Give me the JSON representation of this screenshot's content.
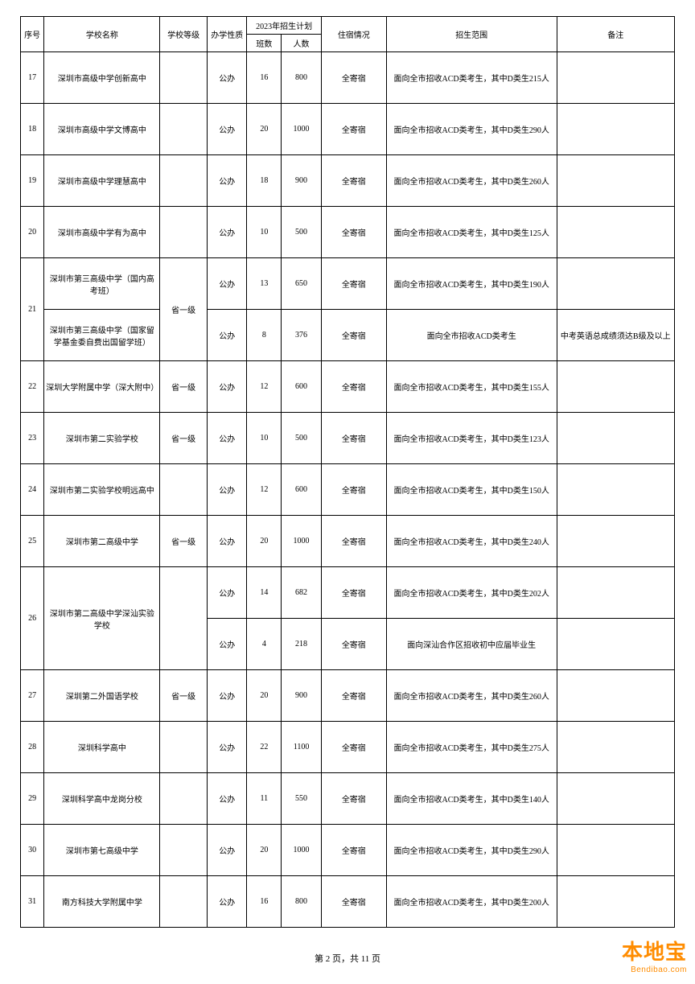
{
  "headers": {
    "seq": "序号",
    "name": "学校名称",
    "level": "学校等级",
    "type": "办学性质",
    "plan": "2023年招生计划",
    "classes": "班数",
    "students": "人数",
    "boarding": "住宿情况",
    "scope": "招生范围",
    "note": "备注"
  },
  "rows": [
    {
      "seq": "17",
      "name": "深圳市高级中学创新高中",
      "level": "",
      "type": "公办",
      "classes": "16",
      "students": "800",
      "boarding": "全寄宿",
      "scope": "面向全市招收ACD类考生，其中D类生215人",
      "note": ""
    },
    {
      "seq": "18",
      "name": "深圳市高级中学文博高中",
      "level": "",
      "type": "公办",
      "classes": "20",
      "students": "1000",
      "boarding": "全寄宿",
      "scope": "面向全市招收ACD类考生，其中D类生290人",
      "note": ""
    },
    {
      "seq": "19",
      "name": "深圳市高级中学理慧高中",
      "level": "",
      "type": "公办",
      "classes": "18",
      "students": "900",
      "boarding": "全寄宿",
      "scope": "面向全市招收ACD类考生，其中D类生260人",
      "note": ""
    },
    {
      "seq": "20",
      "name": "深圳市高级中学有为高中",
      "level": "",
      "type": "公办",
      "classes": "10",
      "students": "500",
      "boarding": "全寄宿",
      "scope": "面向全市招收ACD类考生，其中D类生125人",
      "note": ""
    },
    {
      "seq": "21",
      "name": "深圳市第三高级中学（国内高考班）",
      "level": "省一级",
      "type": "公办",
      "classes": "13",
      "students": "650",
      "boarding": "全寄宿",
      "scope": "面向全市招收ACD类考生，其中D类生190人",
      "note": "",
      "seqRowspan": 2,
      "levelRowspan": 2
    },
    {
      "name": "深圳市第三高级中学（国家留学基金委自费出国留学班）",
      "type": "公办",
      "classes": "8",
      "students": "376",
      "boarding": "全寄宿",
      "scope": "面向全市招收ACD类考生",
      "note": "中考英语总成绩须达B级及以上",
      "hideSeq": true,
      "hideLevel": true
    },
    {
      "seq": "22",
      "name": "深圳大学附属中学（深大附中）",
      "level": "省一级",
      "type": "公办",
      "classes": "12",
      "students": "600",
      "boarding": "全寄宿",
      "scope": "面向全市招收ACD类考生，其中D类生155人",
      "note": ""
    },
    {
      "seq": "23",
      "name": "深圳市第二实验学校",
      "level": "省一级",
      "type": "公办",
      "classes": "10",
      "students": "500",
      "boarding": "全寄宿",
      "scope": "面向全市招收ACD类考生，其中D类生123人",
      "note": ""
    },
    {
      "seq": "24",
      "name": "深圳市第二实验学校明远高中",
      "level": "",
      "type": "公办",
      "classes": "12",
      "students": "600",
      "boarding": "全寄宿",
      "scope": "面向全市招收ACD类考生，其中D类生150人",
      "note": ""
    },
    {
      "seq": "25",
      "name": "深圳市第二高级中学",
      "level": "省一级",
      "type": "公办",
      "classes": "20",
      "students": "1000",
      "boarding": "全寄宿",
      "scope": "面向全市招收ACD类考生，其中D类生240人",
      "note": ""
    },
    {
      "seq": "26",
      "name": "深圳市第二高级中学深汕实验学校",
      "level": "",
      "type": "公办",
      "classes": "14",
      "students": "682",
      "boarding": "全寄宿",
      "scope": "面向全市招收ACD类考生，其中D类生202人",
      "note": "",
      "seqRowspan": 2,
      "nameRowspan": 2,
      "levelRowspan": 2
    },
    {
      "type": "公办",
      "classes": "4",
      "students": "218",
      "boarding": "全寄宿",
      "scope": "面向深汕合作区招收初中应届毕业生",
      "note": "",
      "hideSeq": true,
      "hideName": true,
      "hideLevel": true
    },
    {
      "seq": "27",
      "name": "深圳第二外国语学校",
      "level": "省一级",
      "type": "公办",
      "classes": "20",
      "students": "900",
      "boarding": "全寄宿",
      "scope": "面向全市招收ACD类考生，其中D类生260人",
      "note": ""
    },
    {
      "seq": "28",
      "name": "深圳科学高中",
      "level": "",
      "type": "公办",
      "classes": "22",
      "students": "1100",
      "boarding": "全寄宿",
      "scope": "面向全市招收ACD类考生，其中D类生275人",
      "note": ""
    },
    {
      "seq": "29",
      "name": "深圳科学高中龙岗分校",
      "level": "",
      "type": "公办",
      "classes": "11",
      "students": "550",
      "boarding": "全寄宿",
      "scope": "面向全市招收ACD类考生，其中D类生140人",
      "note": ""
    },
    {
      "seq": "30",
      "name": "深圳市第七高级中学",
      "level": "",
      "type": "公办",
      "classes": "20",
      "students": "1000",
      "boarding": "全寄宿",
      "scope": "面向全市招收ACD类考生，其中D类生290人",
      "note": ""
    },
    {
      "seq": "31",
      "name": "南方科技大学附属中学",
      "level": "",
      "type": "公办",
      "classes": "16",
      "students": "800",
      "boarding": "全寄宿",
      "scope": "面向全市招收ACD类考生，其中D类生200人",
      "note": ""
    }
  ],
  "footer": {
    "text": "第 2 页，共 11 页"
  },
  "watermark": {
    "main": "本地宝",
    "sub": "Bendibao.com"
  }
}
